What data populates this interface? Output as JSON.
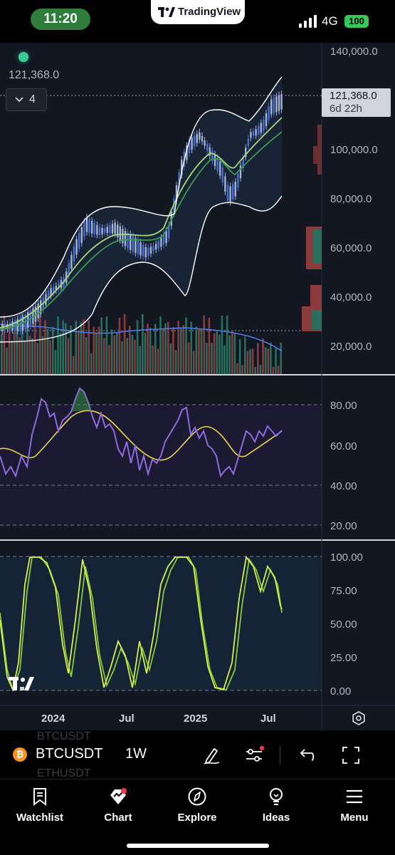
{
  "status_bar": {
    "time": "11:20",
    "app_name": "TradingView",
    "network": "4G",
    "battery": "100"
  },
  "chart": {
    "current_price_label": "121,368.0",
    "indicator_count": "4",
    "last_price_tag": {
      "price": "121,368.0",
      "countdown": "6d 22h"
    },
    "price_axis": [
      "140,000.0",
      "100,000.0",
      "80,000.0",
      "60,000.0",
      "40,000.0",
      "20,000.0"
    ],
    "rsi_axis": [
      "80.00",
      "60.00",
      "40.00",
      "20.00"
    ],
    "stoch_axis": [
      "100.00",
      "75.00",
      "50.00",
      "25.00",
      "0.00"
    ],
    "time_axis": [
      "2024",
      "Jul",
      "2025",
      "Jul"
    ],
    "colors": {
      "background": "#131722",
      "candle_up": "#a3b5d6",
      "candle_down": "#4a6ed8",
      "bollinger": "#ffffff",
      "ema_fast": "#a4d97a",
      "ema_slow": "#3b9a4e",
      "volume_up": "#2a6e5c",
      "volume_down": "#8b3a3e",
      "volume_ma": "#4d7ee8",
      "rsi": "#8f6be0",
      "rsi_ma": "#e8d44d",
      "stoch_k": "#d7f04a",
      "stoch_d": "#86c93e"
    }
  },
  "toolbar": {
    "ghost_symbol_above": "BTCUSDT",
    "symbol": "BTCUSDT",
    "ghost_symbol_below": "ETHUSDT",
    "interval": "1W"
  },
  "nav": [
    {
      "label": "Watchlist",
      "icon": "bookmark-icon"
    },
    {
      "label": "Chart",
      "icon": "chart-icon"
    },
    {
      "label": "Explore",
      "icon": "compass-icon"
    },
    {
      "label": "Ideas",
      "icon": "lightbulb-icon"
    },
    {
      "label": "Menu",
      "icon": "hamburger-icon"
    }
  ]
}
